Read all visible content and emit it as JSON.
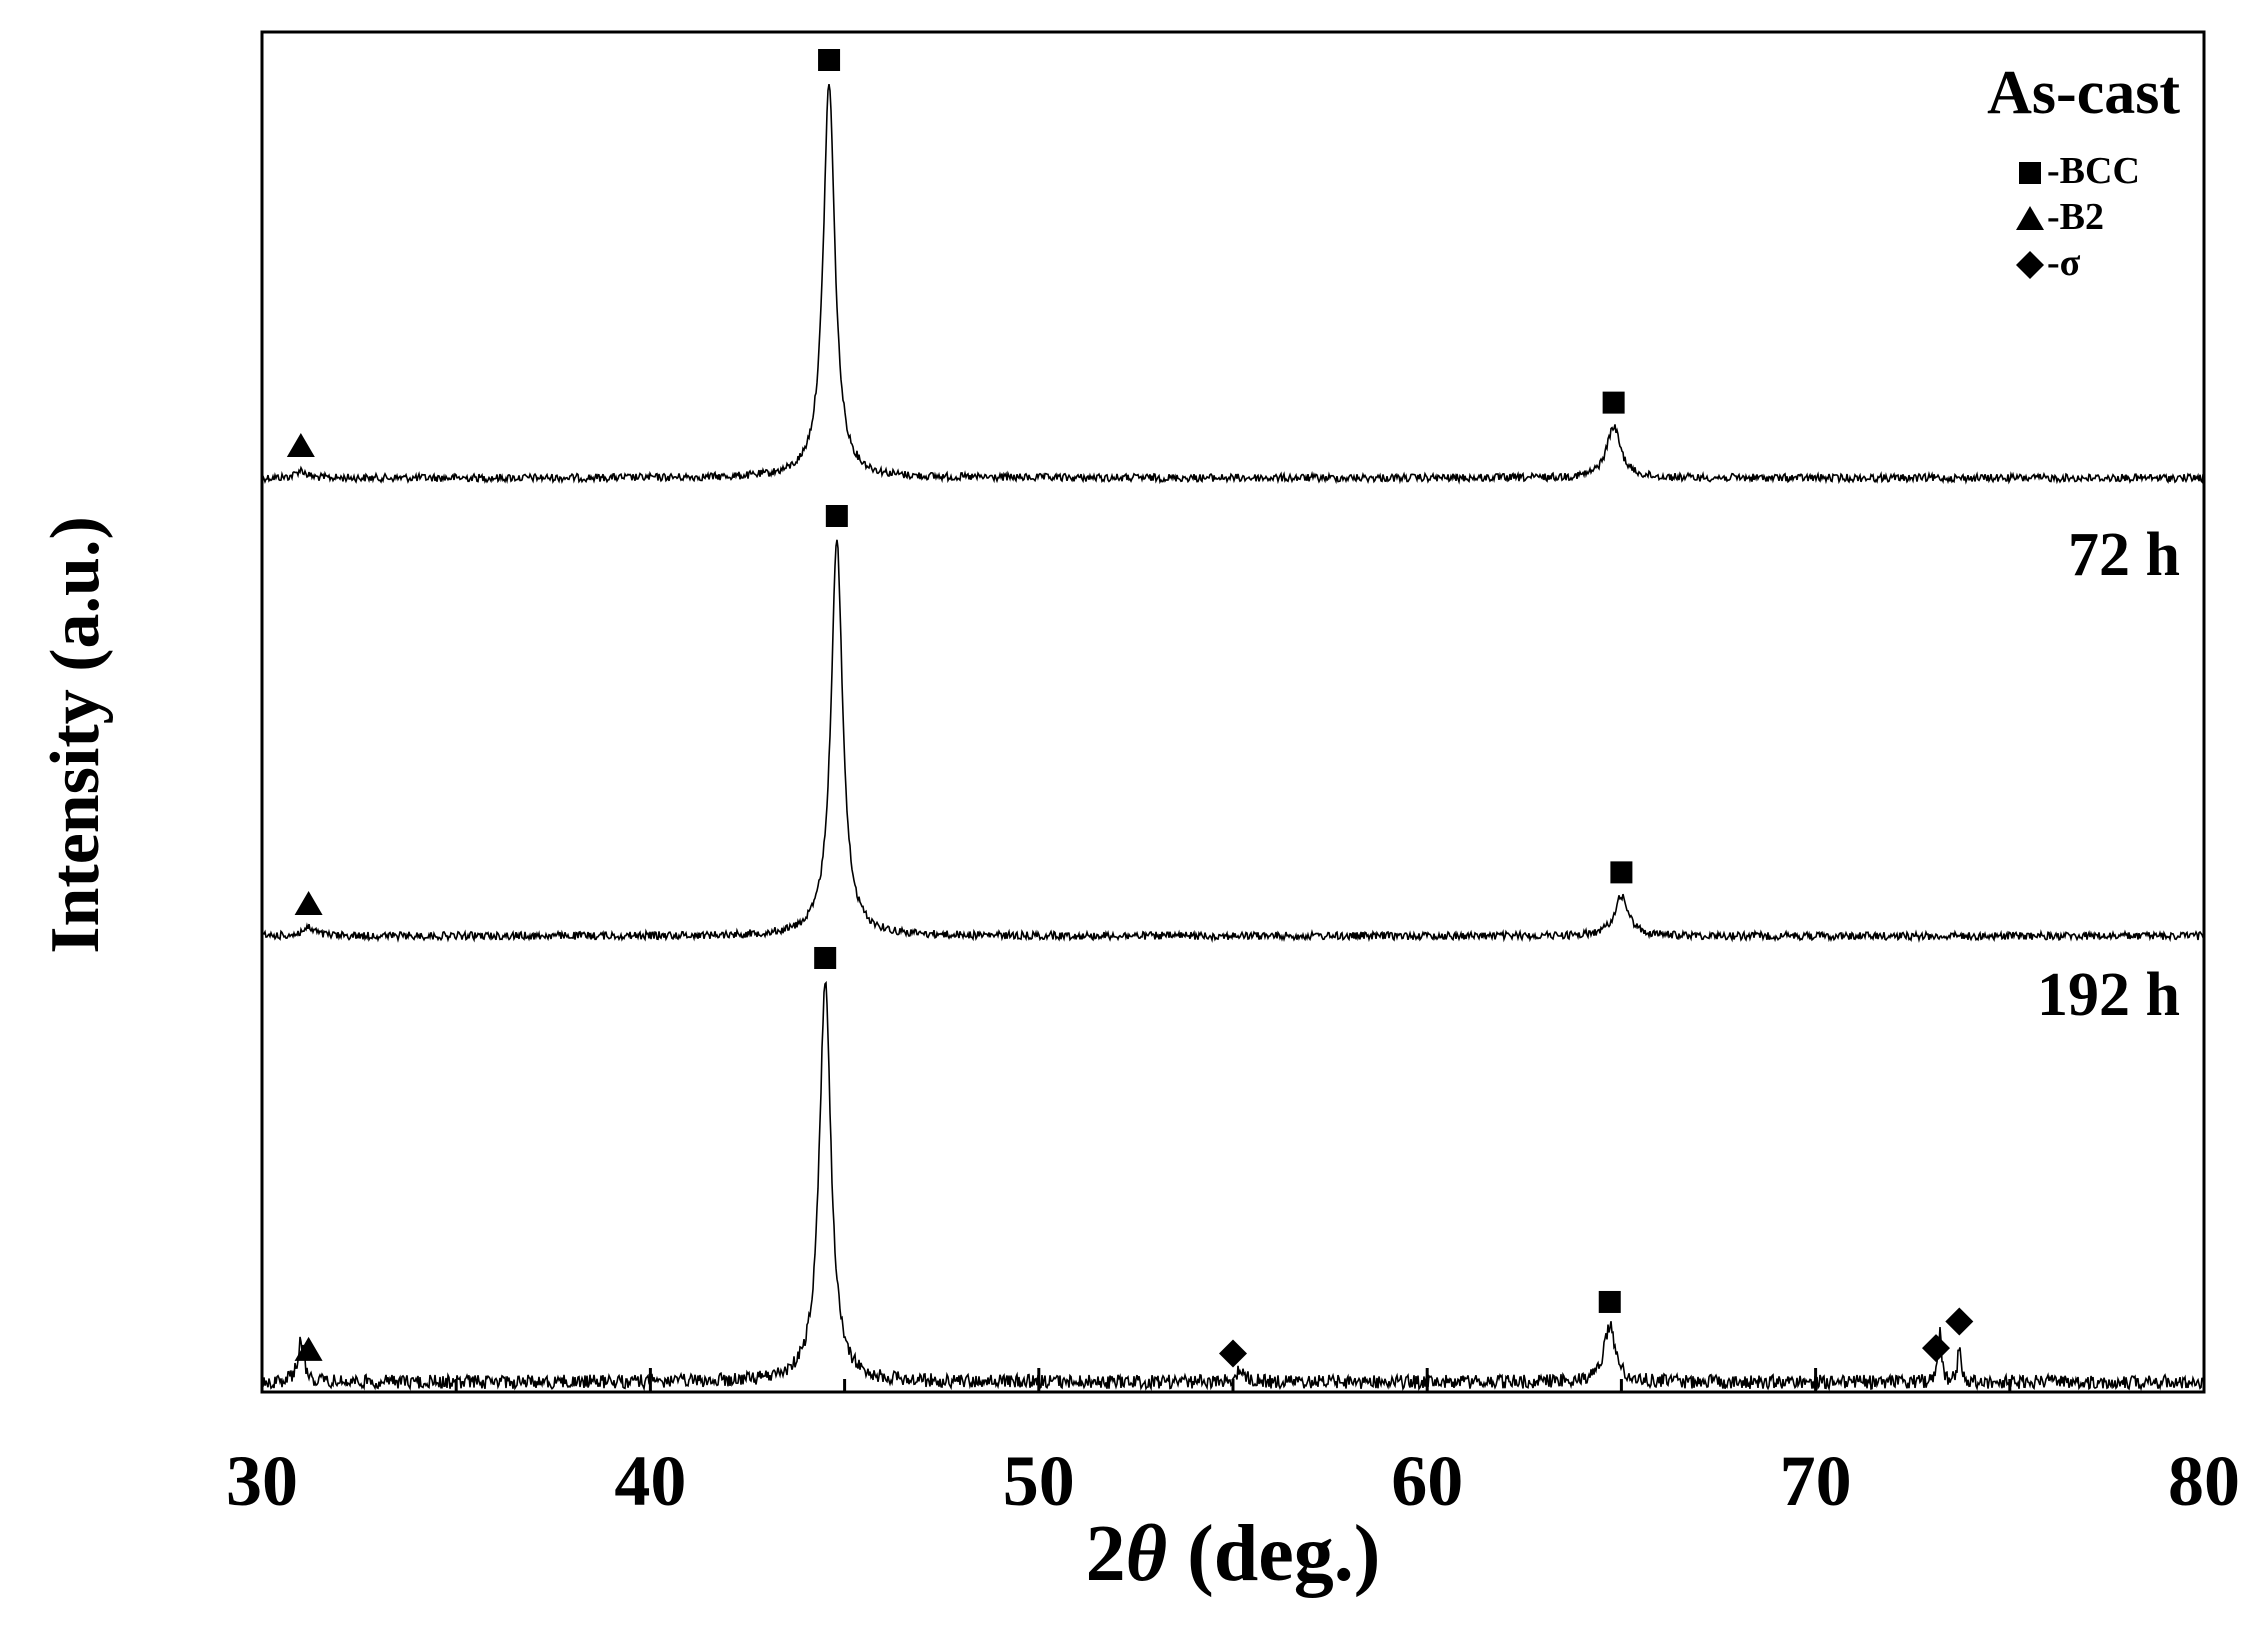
{
  "chart_data": {
    "type": "line",
    "xlabel_prefix": "2",
    "xlabel_symbol": "θ",
    "xlabel_suffix": " (deg.)",
    "ylabel": "Intensity (a.u.)",
    "xlim": [
      30,
      80
    ],
    "xticks": [
      30,
      40,
      50,
      60,
      70,
      80
    ],
    "x_minor_step": 5,
    "y_ticks_shown": false,
    "series": [
      {
        "name": "As-cast",
        "peaks": [
          {
            "x": 31.0,
            "h": 0.02,
            "w": 0.15
          },
          {
            "x": 44.6,
            "h": 1.0,
            "w": 0.18
          },
          {
            "x": 64.8,
            "h": 0.13,
            "w": 0.22
          }
        ],
        "markers": [
          {
            "x": 31.0,
            "phase": "B2"
          },
          {
            "x": 44.6,
            "phase": "BCC"
          },
          {
            "x": 64.8,
            "phase": "BCC"
          }
        ]
      },
      {
        "name": "72 h",
        "peaks": [
          {
            "x": 31.2,
            "h": 0.02,
            "w": 0.2
          },
          {
            "x": 44.8,
            "h": 1.0,
            "w": 0.18
          },
          {
            "x": 65.0,
            "h": 0.1,
            "w": 0.22
          }
        ],
        "markers": [
          {
            "x": 31.2,
            "phase": "B2"
          },
          {
            "x": 44.8,
            "phase": "BCC"
          },
          {
            "x": 65.0,
            "phase": "BCC"
          }
        ]
      },
      {
        "name": "192 h",
        "peaks": [
          {
            "x": 31.0,
            "h": 0.1,
            "w": 0.1
          },
          {
            "x": 44.5,
            "h": 1.0,
            "w": 0.18
          },
          {
            "x": 55.2,
            "h": 0.03,
            "w": 0.15
          },
          {
            "x": 64.7,
            "h": 0.14,
            "w": 0.18
          },
          {
            "x": 73.2,
            "h": 0.12,
            "w": 0.05
          },
          {
            "x": 73.7,
            "h": 0.09,
            "w": 0.05
          }
        ],
        "markers": [
          {
            "x": 31.2,
            "phase": "B2"
          },
          {
            "x": 44.5,
            "phase": "BCC"
          },
          {
            "x": 55.0,
            "phase": "sigma"
          },
          {
            "x": 64.7,
            "phase": "BCC"
          },
          {
            "x": 73.1,
            "phase": "sigma"
          },
          {
            "x": 73.7,
            "phase": "sigma"
          }
        ]
      }
    ],
    "legend": {
      "placement": "top-right",
      "entries": [
        {
          "symbol": "square",
          "label": "-BCC"
        },
        {
          "symbol": "triangle",
          "label": "-B2"
        },
        {
          "symbol": "diamond",
          "label": "-σ"
        }
      ]
    },
    "line_color": "#000000"
  }
}
